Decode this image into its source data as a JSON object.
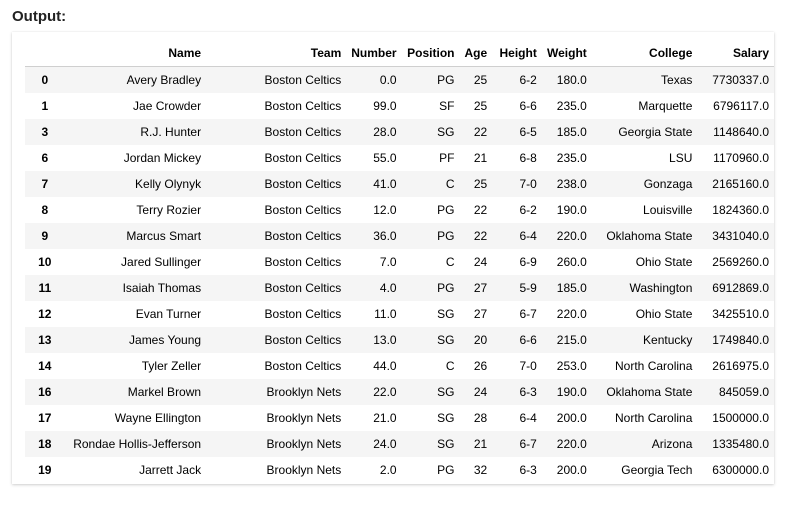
{
  "output_label": "Output:",
  "table": {
    "columns": [
      "",
      "Name",
      "Team",
      "Number",
      "Position",
      "Age",
      "Height",
      "Weight",
      "College",
      "Salary"
    ],
    "rows": [
      [
        "0",
        "Avery Bradley",
        "Boston Celtics",
        "0.0",
        "PG",
        "25",
        "6-2",
        "180.0",
        "Texas",
        "7730337.0"
      ],
      [
        "1",
        "Jae Crowder",
        "Boston Celtics",
        "99.0",
        "SF",
        "25",
        "6-6",
        "235.0",
        "Marquette",
        "6796117.0"
      ],
      [
        "3",
        "R.J. Hunter",
        "Boston Celtics",
        "28.0",
        "SG",
        "22",
        "6-5",
        "185.0",
        "Georgia State",
        "1148640.0"
      ],
      [
        "6",
        "Jordan Mickey",
        "Boston Celtics",
        "55.0",
        "PF",
        "21",
        "6-8",
        "235.0",
        "LSU",
        "1170960.0"
      ],
      [
        "7",
        "Kelly Olynyk",
        "Boston Celtics",
        "41.0",
        "C",
        "25",
        "7-0",
        "238.0",
        "Gonzaga",
        "2165160.0"
      ],
      [
        "8",
        "Terry Rozier",
        "Boston Celtics",
        "12.0",
        "PG",
        "22",
        "6-2",
        "190.0",
        "Louisville",
        "1824360.0"
      ],
      [
        "9",
        "Marcus Smart",
        "Boston Celtics",
        "36.0",
        "PG",
        "22",
        "6-4",
        "220.0",
        "Oklahoma State",
        "3431040.0"
      ],
      [
        "10",
        "Jared Sullinger",
        "Boston Celtics",
        "7.0",
        "C",
        "24",
        "6-9",
        "260.0",
        "Ohio State",
        "2569260.0"
      ],
      [
        "11",
        "Isaiah Thomas",
        "Boston Celtics",
        "4.0",
        "PG",
        "27",
        "5-9",
        "185.0",
        "Washington",
        "6912869.0"
      ],
      [
        "12",
        "Evan Turner",
        "Boston Celtics",
        "11.0",
        "SG",
        "27",
        "6-7",
        "220.0",
        "Ohio State",
        "3425510.0"
      ],
      [
        "13",
        "James Young",
        "Boston Celtics",
        "13.0",
        "SG",
        "20",
        "6-6",
        "215.0",
        "Kentucky",
        "1749840.0"
      ],
      [
        "14",
        "Tyler Zeller",
        "Boston Celtics",
        "44.0",
        "C",
        "26",
        "7-0",
        "253.0",
        "North Carolina",
        "2616975.0"
      ],
      [
        "16",
        "Markel Brown",
        "Brooklyn Nets",
        "22.0",
        "SG",
        "24",
        "6-3",
        "190.0",
        "Oklahoma State",
        "845059.0"
      ],
      [
        "17",
        "Wayne Ellington",
        "Brooklyn Nets",
        "21.0",
        "SG",
        "28",
        "6-4",
        "200.0",
        "North Carolina",
        "1500000.0"
      ],
      [
        "18",
        "Rondae Hollis-Jefferson",
        "Brooklyn Nets",
        "24.0",
        "SG",
        "21",
        "6-7",
        "220.0",
        "Arizona",
        "1335480.0"
      ],
      [
        "19",
        "Jarrett Jack",
        "Brooklyn Nets",
        "2.0",
        "PG",
        "32",
        "6-3",
        "200.0",
        "Georgia Tech",
        "6300000.0"
      ]
    ]
  }
}
